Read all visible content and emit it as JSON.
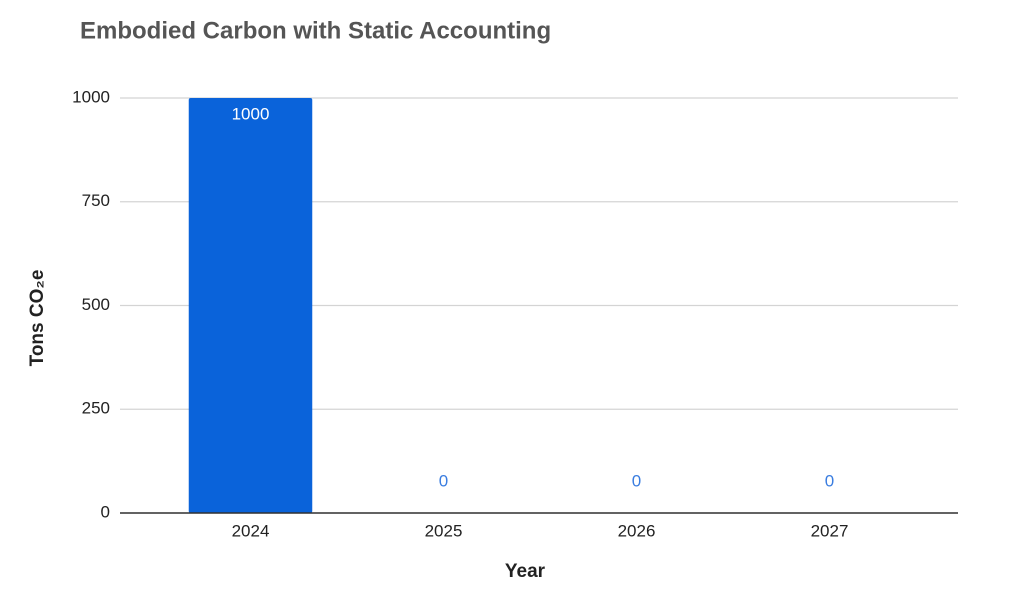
{
  "chart_data": {
    "type": "bar",
    "title": "Embodied Carbon with Static Accounting",
    "x_label": "Year",
    "y_label": "Tons CO₂e",
    "categories": [
      "2024",
      "2025",
      "2026",
      "2027"
    ],
    "values": [
      1000,
      0,
      0,
      0
    ],
    "color": "#0a63da",
    "ylim": [
      0,
      1000
    ],
    "yticks": [
      0,
      250,
      500,
      750,
      1000
    ],
    "grid": true
  }
}
